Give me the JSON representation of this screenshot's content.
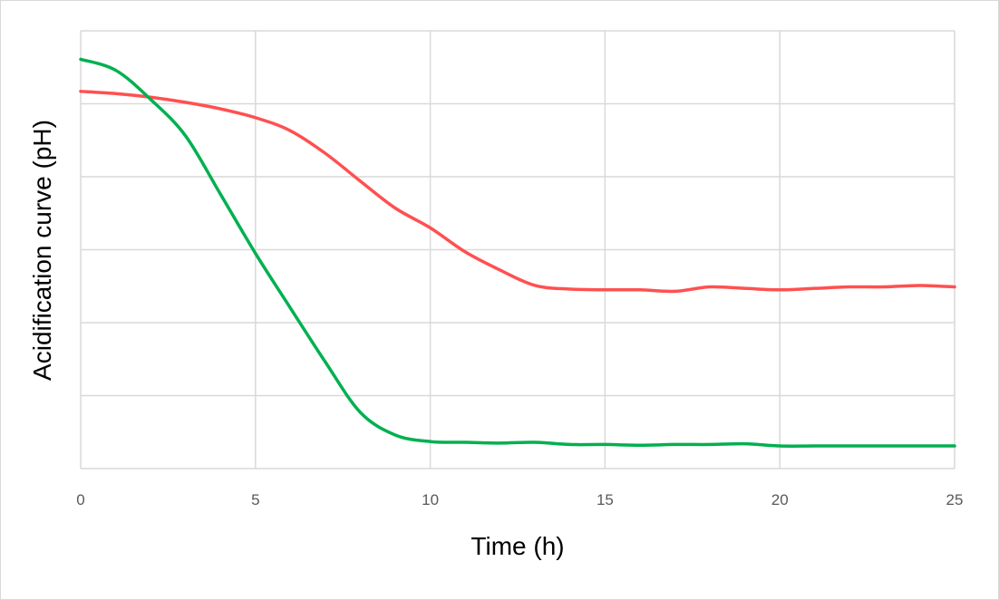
{
  "chart_data": {
    "type": "line",
    "title": "",
    "xlabel": "Time (h)",
    "ylabel": "Acidification curve (pH)",
    "xlim": [
      0,
      25
    ],
    "ylim": [
      0,
      6
    ],
    "xticks": [
      "0",
      "5",
      "10",
      "15",
      "20",
      "25"
    ],
    "yticks_labeled": false,
    "grid": true,
    "legend": "none",
    "x": [
      0,
      1,
      2,
      3,
      4,
      5,
      6,
      7,
      8,
      9,
      10,
      11,
      12,
      13,
      14,
      15,
      16,
      17,
      18,
      19,
      20,
      21,
      22,
      23,
      24,
      25
    ],
    "series": [
      {
        "name": "red series",
        "color": "#ff5050",
        "values": [
          5.17,
          5.14,
          5.09,
          5.02,
          4.93,
          4.81,
          4.63,
          4.32,
          3.94,
          3.57,
          3.3,
          2.97,
          2.72,
          2.51,
          2.46,
          2.45,
          2.45,
          2.43,
          2.49,
          2.47,
          2.45,
          2.47,
          2.49,
          2.49,
          2.51,
          2.49
        ]
      },
      {
        "name": "green series",
        "color": "#00b050",
        "values": [
          5.61,
          5.46,
          5.06,
          4.56,
          3.76,
          2.95,
          2.2,
          1.46,
          0.77,
          0.46,
          0.37,
          0.36,
          0.35,
          0.36,
          0.33,
          0.33,
          0.32,
          0.33,
          0.33,
          0.34,
          0.31,
          0.31,
          0.31,
          0.31,
          0.31,
          0.31
        ]
      }
    ]
  }
}
